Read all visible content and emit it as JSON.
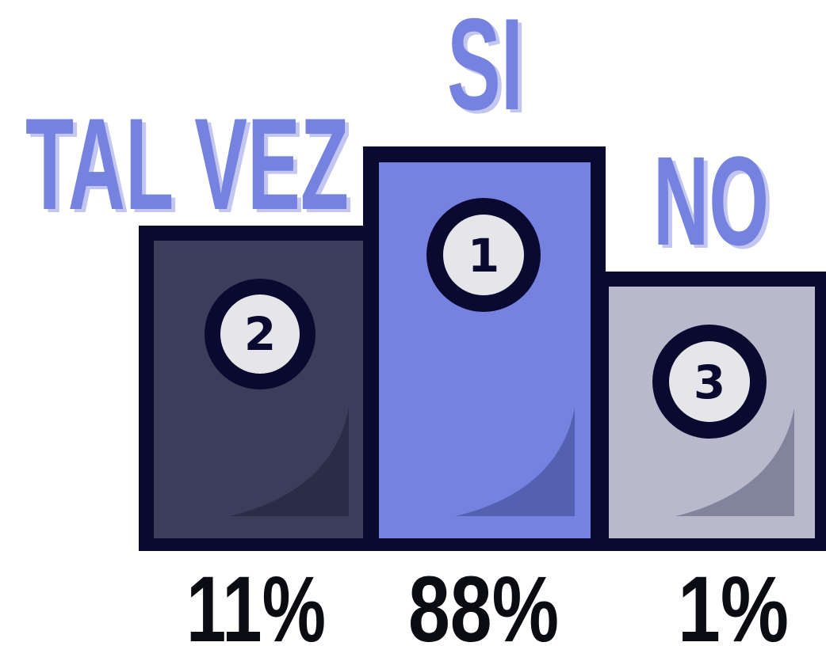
{
  "podium": [
    {
      "label": "TAL VEZ",
      "rank": "2",
      "percent": "11%"
    },
    {
      "label": "SI",
      "rank": "1",
      "percent": "88%"
    },
    {
      "label": "NO",
      "rank": "3",
      "percent": "1%"
    }
  ]
}
